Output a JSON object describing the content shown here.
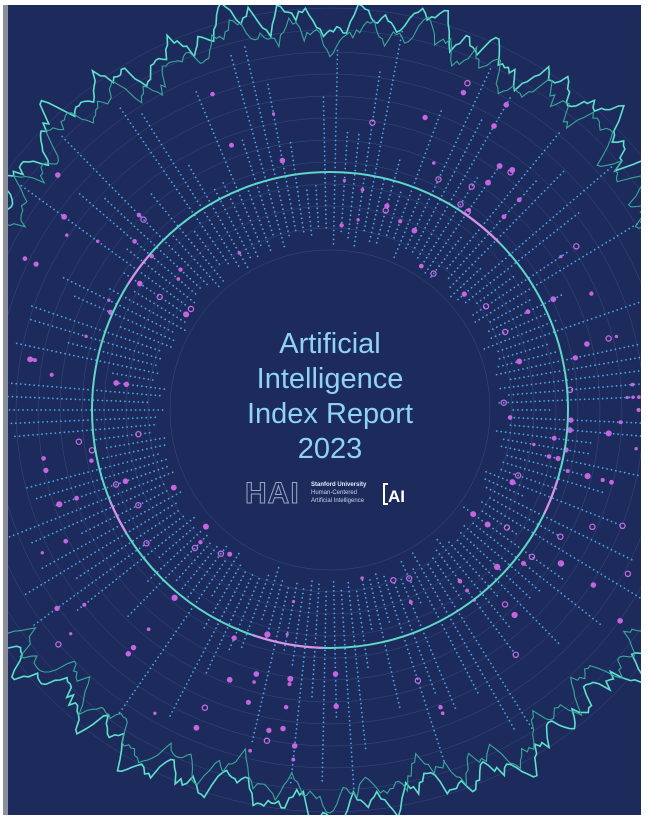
{
  "cover": {
    "title_lines": [
      "Artificial",
      "Intelligence",
      "Index Report",
      "2023"
    ],
    "logo": {
      "mark": "HAI",
      "org": "Stanford University",
      "line1": "Human-Centered",
      "line2": "Artificial Intelligence",
      "badge": "AI"
    }
  }
}
